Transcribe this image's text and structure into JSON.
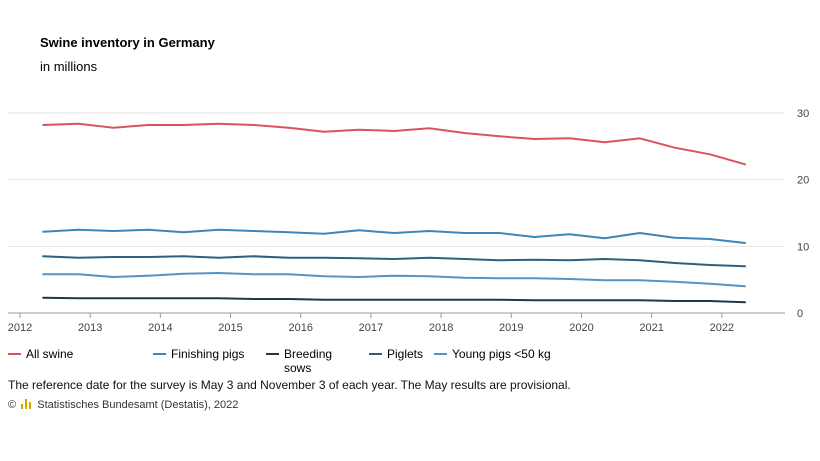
{
  "chart_data": {
    "type": "line",
    "title": "Swine inventory in Germany",
    "subtitle": "in millions",
    "xlabel": "",
    "ylabel": "",
    "xlim": [
      2012,
      2022.9
    ],
    "ylim": [
      0,
      30
    ],
    "x_ticks": [
      "2012",
      "2013",
      "2014",
      "2015",
      "2016",
      "2017",
      "2018",
      "2019",
      "2020",
      "2021",
      "2022"
    ],
    "y_ticks": [
      "0",
      "10",
      "20",
      "30"
    ],
    "x": [
      2012.33,
      2012.83,
      2013.33,
      2013.83,
      2014.33,
      2014.83,
      2015.33,
      2015.83,
      2016.33,
      2016.83,
      2017.33,
      2017.83,
      2018.33,
      2018.83,
      2019.33,
      2019.83,
      2020.33,
      2020.83,
      2021.33,
      2021.83,
      2022.33
    ],
    "series": [
      {
        "name": "All swine",
        "color": "#d9555e",
        "values": [
          28.2,
          28.4,
          27.8,
          28.2,
          28.2,
          28.4,
          28.2,
          27.8,
          27.2,
          27.5,
          27.3,
          27.7,
          27.0,
          26.5,
          26.1,
          26.2,
          25.6,
          26.2,
          24.8,
          23.8,
          22.3
        ]
      },
      {
        "name": "Finishing pigs",
        "color": "#3d86b8",
        "values": [
          12.2,
          12.5,
          12.3,
          12.5,
          12.1,
          12.5,
          12.3,
          12.1,
          11.9,
          12.4,
          12.0,
          12.3,
          12.0,
          12.0,
          11.4,
          11.8,
          11.2,
          12.0,
          11.3,
          11.1,
          10.5
        ]
      },
      {
        "name": "Breeding\nsows",
        "color": "#1f3848",
        "values": [
          2.3,
          2.2,
          2.2,
          2.2,
          2.2,
          2.2,
          2.1,
          2.1,
          2.0,
          2.0,
          2.0,
          2.0,
          2.0,
          2.0,
          1.9,
          1.9,
          1.9,
          1.9,
          1.8,
          1.8,
          1.6
        ]
      },
      {
        "name": "Piglets",
        "color": "#2d5f7e",
        "values": [
          8.5,
          8.3,
          8.4,
          8.4,
          8.5,
          8.3,
          8.5,
          8.3,
          8.3,
          8.2,
          8.1,
          8.3,
          8.1,
          7.9,
          8.0,
          7.9,
          8.1,
          7.9,
          7.5,
          7.2,
          7.0
        ]
      },
      {
        "name": "Young pigs <50 kg",
        "color": "#5593c7",
        "values": [
          5.8,
          5.8,
          5.4,
          5.6,
          5.9,
          6.0,
          5.8,
          5.8,
          5.5,
          5.4,
          5.6,
          5.5,
          5.3,
          5.2,
          5.2,
          5.1,
          4.9,
          4.9,
          4.7,
          4.4,
          4.0
        ]
      }
    ],
    "legend_position": "bottom",
    "grid": true
  },
  "note": "The reference date for the survey is May 3 and November 3 of each year. The May results are provisional.",
  "source": {
    "copyright": "©",
    "text": "Statistisches Bundesamt (Destatis), 2022",
    "logo_color": "#d9a400"
  }
}
